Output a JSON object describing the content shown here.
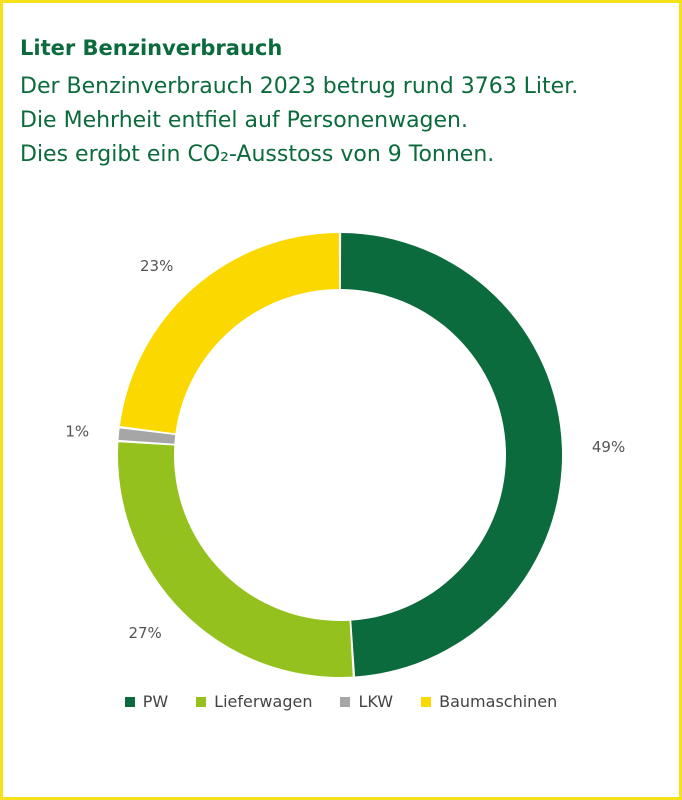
{
  "header": {
    "title": "Liter Benzinverbrauch",
    "subtitle_lines": [
      "Der Benzinverbrauch 2023 betrug rund 3763 Liter.",
      "Die Mehrheit entfiel auf Personenwagen.",
      "Dies ergibt ein CO₂-Ausstoss von 9 Tonnen."
    ]
  },
  "colors": {
    "frame": "#f7e11a",
    "text_primary": "#0b6b3c"
  },
  "chart_data": {
    "type": "pie",
    "variant": "donut",
    "title": "Liter Benzinverbrauch",
    "categories": [
      "PW",
      "Lieferwagen",
      "LKW",
      "Baumaschinen"
    ],
    "values": [
      49,
      27,
      1,
      23
    ],
    "labels": [
      "49%",
      "27%",
      "1%",
      "23%"
    ],
    "colors": [
      "#0b6b3c",
      "#95c11f",
      "#a6a6a6",
      "#fbd800"
    ],
    "start_angle_deg": 0,
    "direction": "clockwise",
    "legend_position": "bottom"
  }
}
